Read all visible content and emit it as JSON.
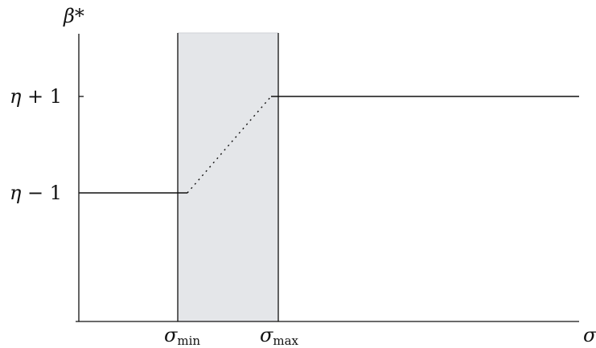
{
  "diagram": {
    "y_axis_label": "β*",
    "x_axis_label": "σ",
    "y_ticks": [
      {
        "symbol": "η",
        "op": "+ 1",
        "level": "eta_plus_1"
      },
      {
        "symbol": "η",
        "op": "− 1",
        "level": "eta_minus_1"
      }
    ],
    "x_ticks": [
      {
        "symbol": "σ",
        "subscript": "min"
      },
      {
        "symbol": "σ",
        "subscript": "max"
      }
    ],
    "shaded_band": {
      "from": "σ_min",
      "to": "σ_max",
      "fill_color": "#e4e6e9"
    },
    "curve": {
      "left_segment_level": "η − 1",
      "right_segment_level": "η + 1",
      "transition_style": "dotted",
      "line_color": "#111111"
    }
  }
}
